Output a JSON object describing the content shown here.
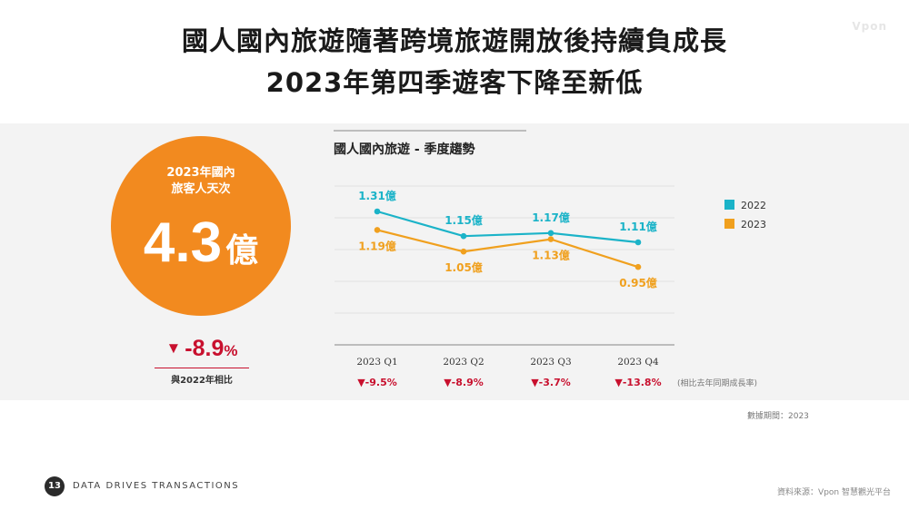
{
  "header": {
    "line1": "國人國內旅遊隨著跨境旅遊開放後持續負成長",
    "line2": "2023年第四季遊客下降至新低",
    "watermark": "Vpon"
  },
  "kpi": {
    "caption_line1": "2023年國內",
    "caption_line2": "旅客人天次",
    "value": "4.3",
    "unit": "億",
    "delta_arrow": "▼",
    "delta_value": "-8.9",
    "delta_pct": "%",
    "delta_caption": "與2022年相比",
    "color": "#f28a1f"
  },
  "chart_data": {
    "type": "line",
    "title": "國人國內旅遊 - 季度趨勢",
    "categories": [
      "2023 Q1",
      "2023 Q2",
      "2023 Q3",
      "2023 Q4"
    ],
    "series": [
      {
        "name": "2022",
        "values": [
          1.31,
          1.15,
          1.17,
          1.11
        ],
        "labels": [
          "1.31億",
          "1.15億",
          "1.17億",
          "1.11億"
        ],
        "color": "#1bb3c8"
      },
      {
        "name": "2023",
        "values": [
          1.19,
          1.05,
          1.13,
          0.95
        ],
        "labels": [
          "1.19億",
          "1.05億",
          "1.13億",
          "0.95億"
        ],
        "color": "#f0a01e"
      }
    ],
    "growth": [
      "-9.5%",
      "-8.9%",
      "-3.7%",
      "-13.8%"
    ],
    "growth_arrow": "▼",
    "growth_color": "#c8102e",
    "grid": true,
    "legend_position": "right",
    "ylim": [
      0.0,
      1.4
    ]
  },
  "notes": {
    "growth_note": "(相比去年同期成長率)",
    "period": "數據期間：2023",
    "source": "資料來源：Vpon 智慧觀光平台"
  },
  "footer": {
    "page_number": "13",
    "tagline": "DATA DRIVES TRANSACTIONS"
  }
}
